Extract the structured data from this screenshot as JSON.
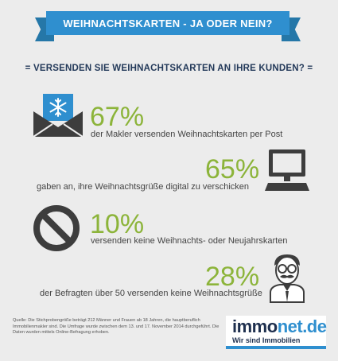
{
  "title": "WEIHNACHTSKARTEN - JA ODER NEIN?",
  "question": "= VERSENDEN SIE WEIHNACHTSKARTEN AN IHRE KUNDEN? =",
  "stats": [
    {
      "percent": "67%",
      "text": "der Makler versenden Weihnachtskarten per Post",
      "icon": "envelope-snowflake-icon"
    },
    {
      "percent": "65%",
      "text": "gaben an, ihre Weihnachtsgrüße digital zu verschicken",
      "icon": "computer-monitor-icon"
    },
    {
      "percent": "10%",
      "text": "versenden keine Weihnachts- oder Neujahrskarten",
      "icon": "prohibited-icon"
    },
    {
      "percent": "28%",
      "text": "der Befragten über 50 versenden keine Weihnachtsgrüße",
      "icon": "older-man-icon"
    }
  ],
  "footer": {
    "source": "Quelle: Die Stichprobengröße beträgt 212 Männer und Frauen ab 18 Jahren, die hauptberuflich Immobilienmakler sind. Die Umfrage wurde zwischen dem 13. und 17. November 2014 durchgeführt. Die Daten wurden mittels Online-Befragung erhoben."
  },
  "logo": {
    "brand_part1": "immo",
    "brand_part2": "net.de",
    "slogan": "Wir sind Immobilien"
  },
  "colors": {
    "accent_blue": "#2f8fcf",
    "percent_green": "#8cb43a",
    "icon_dark": "#3d3d3d",
    "background": "#ececec"
  }
}
